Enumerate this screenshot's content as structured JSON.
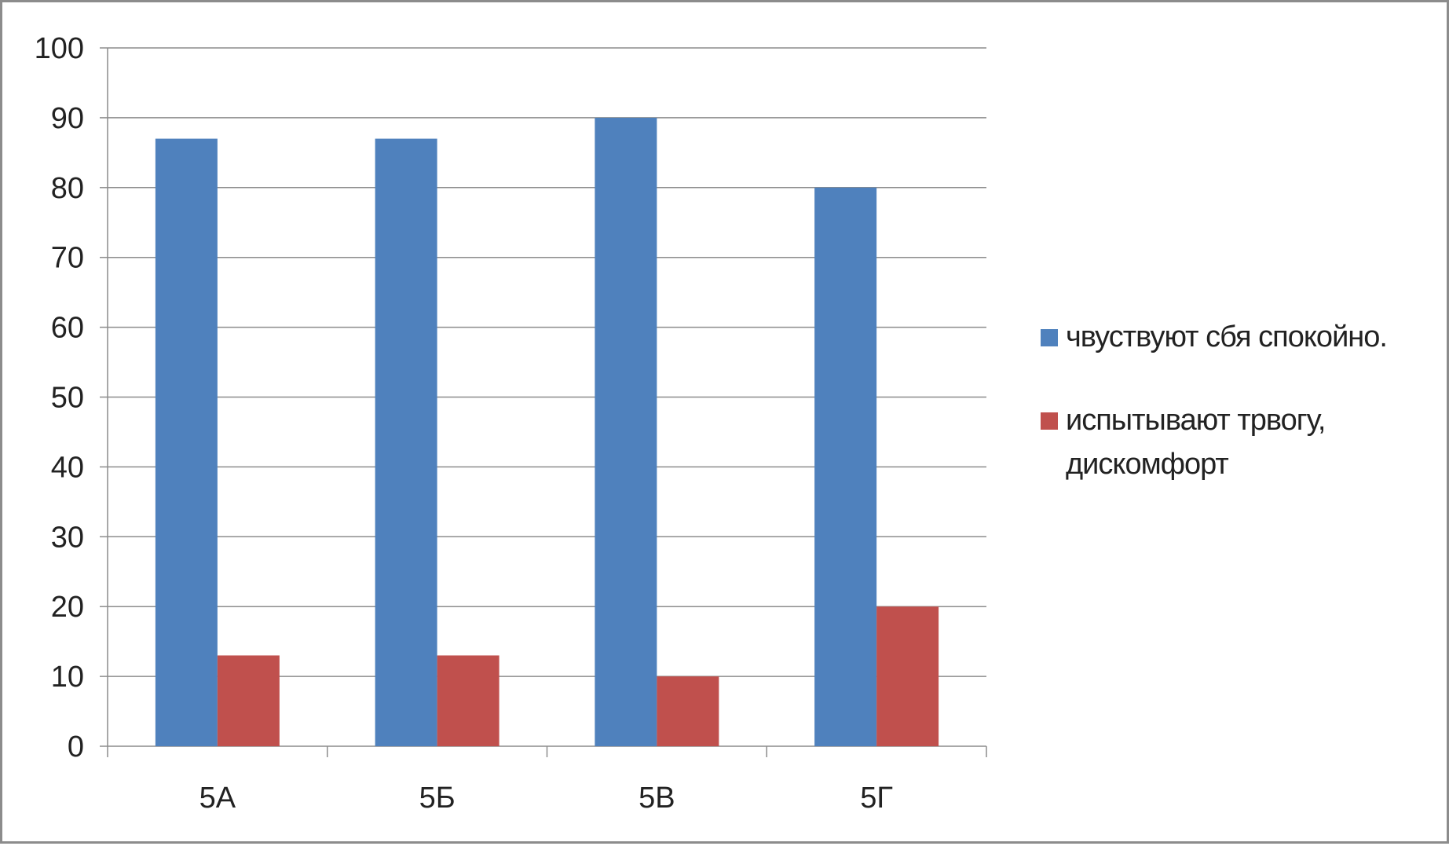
{
  "chart_data": {
    "type": "bar",
    "categories": [
      "5А",
      "5Б",
      "5В",
      "5Г"
    ],
    "series": [
      {
        "name": "чвуствуют сбя спокойно.",
        "values": [
          87,
          87,
          90,
          80
        ],
        "color": "#4f81bd"
      },
      {
        "name": "испытывают трвогу, дискомфорт",
        "values": [
          13,
          13,
          10,
          20
        ],
        "color": "#c0504d"
      }
    ],
    "ylim": [
      0,
      100
    ],
    "yticks": [
      0,
      10,
      20,
      30,
      40,
      50,
      60,
      70,
      80,
      90,
      100
    ],
    "grid": true,
    "legend_position": "right"
  }
}
